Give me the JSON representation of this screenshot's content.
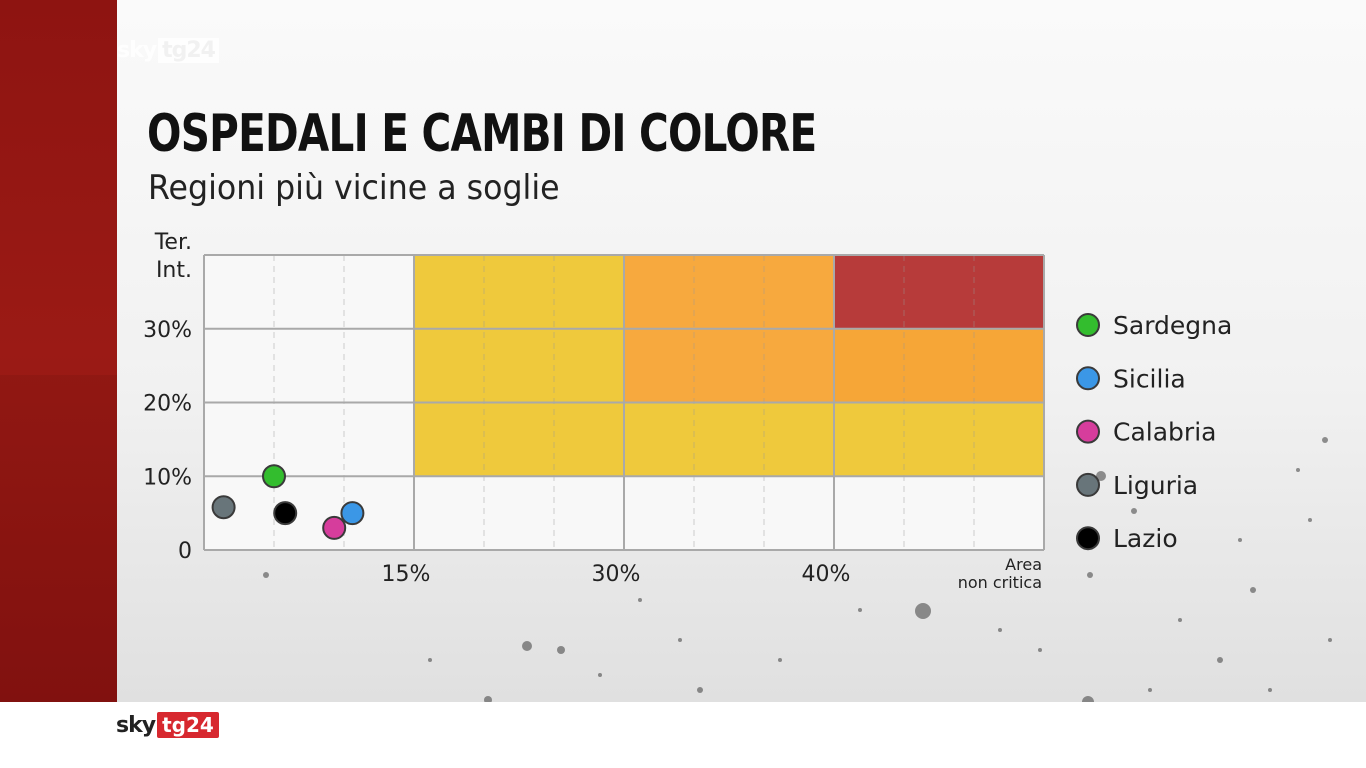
{
  "header": {
    "watermark_sky": "sky",
    "watermark_tg": "tg24",
    "title": "OSPEDALI E CAMBI DI COLORE",
    "subtitle": "Regioni più vicine a soglie"
  },
  "footer": {
    "logo_sky": "sky",
    "logo_tg": "tg24"
  },
  "chart_data": {
    "type": "scatter",
    "title": "OSPEDALI E CAMBI DI COLORE",
    "subtitle": "Regioni più vicine a soglie",
    "ylabel_lines": [
      "Ter.",
      "Int."
    ],
    "xlabel_lines": [
      "Area",
      "non critica"
    ],
    "x_ticks": [
      {
        "value": 15,
        "label": "15%"
      },
      {
        "value": 30,
        "label": "30%"
      },
      {
        "value": 40,
        "label": "40%"
      }
    ],
    "y_ticks": [
      {
        "value": 0,
        "label": "0"
      },
      {
        "value": 10,
        "label": "10%"
      },
      {
        "value": 20,
        "label": "20%"
      },
      {
        "value": 30,
        "label": "30%"
      }
    ],
    "x_scale": {
      "breaks": [
        0,
        15,
        30,
        40,
        50
      ]
    },
    "ylim": [
      0,
      40
    ],
    "zones": [
      {
        "x": [
          15,
          30
        ],
        "y": [
          10,
          40
        ],
        "color": "#efc93c"
      },
      {
        "x": [
          30,
          40
        ],
        "y": [
          10,
          20
        ],
        "color": "#efc93c"
      },
      {
        "x": [
          40,
          50
        ],
        "y": [
          10,
          20
        ],
        "color": "#efc93c"
      },
      {
        "x": [
          30,
          40
        ],
        "y": [
          20,
          40
        ],
        "color": "#f7a93e"
      },
      {
        "x": [
          40,
          50
        ],
        "y": [
          20,
          30
        ],
        "color": "#f6a637"
      },
      {
        "x": [
          40,
          50
        ],
        "y": [
          30,
          40
        ],
        "color": "#b73b3a"
      }
    ],
    "series": [
      {
        "name": "Sardegna",
        "color": "#33bd2e",
        "x": 5,
        "y": 10
      },
      {
        "name": "Sicilia",
        "color": "#3b97e6",
        "x": 10.6,
        "y": 5
      },
      {
        "name": "Calabria",
        "color": "#d63d9c",
        "x": 9.3,
        "y": 3
      },
      {
        "name": "Liguria",
        "color": "#68757a",
        "x": 1.4,
        "y": 5.8
      },
      {
        "name": "Lazio",
        "color": "#000000",
        "x": 5.8,
        "y": 5
      }
    ],
    "grid": true,
    "legend_position": "right"
  }
}
